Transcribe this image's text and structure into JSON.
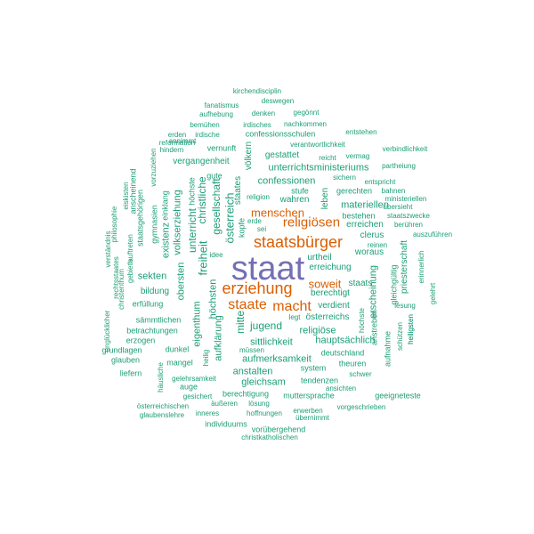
{
  "colors": {
    "frequent": "#7570b3",
    "common": "#d95f02",
    "rare": "#1b9e77"
  },
  "words": [
    {
      "text": "staat",
      "rank": 1
    },
    {
      "text": "staatsbürger",
      "rank": 2
    },
    {
      "text": "erziehung",
      "rank": 2
    },
    {
      "text": "religiösen",
      "rank": 2
    },
    {
      "text": "menschen",
      "rank": 2
    },
    {
      "text": "staate",
      "rank": 2
    },
    {
      "text": "macht",
      "rank": 2
    },
    {
      "text": "soweit",
      "rank": 2
    },
    {
      "text": "kirchendisciplin",
      "rank": 3
    },
    {
      "text": "deswegen",
      "rank": 3
    },
    {
      "text": "fanatismus",
      "rank": 3
    },
    {
      "text": "aufhebung",
      "rank": 3
    },
    {
      "text": "denken",
      "rank": 3
    },
    {
      "text": "gegönnt",
      "rank": 3
    },
    {
      "text": "bemühen",
      "rank": 3
    },
    {
      "text": "irdisches",
      "rank": 3
    },
    {
      "text": "nachkommen",
      "rank": 3
    },
    {
      "text": "erden",
      "rank": 3
    },
    {
      "text": "irdische",
      "rank": 3
    },
    {
      "text": "confessionsschulen",
      "rank": 3
    },
    {
      "text": "entstehen",
      "rank": 3
    },
    {
      "text": "reformation",
      "rank": 3
    },
    {
      "text": "annimmt",
      "rank": 3
    },
    {
      "text": "vernunft",
      "rank": 3
    },
    {
      "text": "verantwortlichkeit",
      "rank": 3
    },
    {
      "text": "verbindlichkeit",
      "rank": 3
    },
    {
      "text": "hindern",
      "rank": 3
    },
    {
      "text": "reicht",
      "rank": 3
    },
    {
      "text": "vermag",
      "rank": 3
    },
    {
      "text": "vergangenheit",
      "rank": 3
    },
    {
      "text": "gestattet",
      "rank": 3
    },
    {
      "text": "partheiung",
      "rank": 3
    },
    {
      "text": "unterrichtsministeriums",
      "rank": 3
    },
    {
      "text": "sichern",
      "rank": 3
    },
    {
      "text": "entspricht",
      "rank": 3
    },
    {
      "text": "gute",
      "rank": 3
    },
    {
      "text": "confessionen",
      "rank": 3
    },
    {
      "text": "stufe",
      "rank": 3
    },
    {
      "text": "gerechten",
      "rank": 3
    },
    {
      "text": "bahnen",
      "rank": 3
    },
    {
      "text": "religion",
      "rank": 3
    },
    {
      "text": "wahren",
      "rank": 3
    },
    {
      "text": "ministeriellen",
      "rank": 3
    },
    {
      "text": "übersieht",
      "rank": 3
    },
    {
      "text": "materiellen",
      "rank": 3
    },
    {
      "text": "bestehen",
      "rank": 3
    },
    {
      "text": "staatszwecke",
      "rank": 3
    },
    {
      "text": "erreichen",
      "rank": 3
    },
    {
      "text": "berühren",
      "rank": 3
    },
    {
      "text": "auszuführen",
      "rank": 3
    },
    {
      "text": "erde",
      "rank": 3
    },
    {
      "text": "sei",
      "rank": 3
    },
    {
      "text": "clerus",
      "rank": 3
    },
    {
      "text": "reinen",
      "rank": 3
    },
    {
      "text": "idee",
      "rank": 3
    },
    {
      "text": "woraus",
      "rank": 3
    },
    {
      "text": "urtheil",
      "rank": 3
    },
    {
      "text": "erreichung",
      "rank": 3
    },
    {
      "text": "sekten",
      "rank": 3
    },
    {
      "text": "bildung",
      "rank": 3
    },
    {
      "text": "staats",
      "rank": 3
    },
    {
      "text": "berechtigt",
      "rank": 3
    },
    {
      "text": "erfüllung",
      "rank": 3
    },
    {
      "text": "verdient",
      "rank": 3
    },
    {
      "text": "lesung",
      "rank": 3
    },
    {
      "text": "jugend",
      "rank": 3
    },
    {
      "text": "österreichs",
      "rank": 3
    },
    {
      "text": "legt",
      "rank": 3
    },
    {
      "text": "sämmtlichen",
      "rank": 3
    },
    {
      "text": "religiöse",
      "rank": 3
    },
    {
      "text": "betrachtungen",
      "rank": 3
    },
    {
      "text": "sittlichkeit",
      "rank": 3
    },
    {
      "text": "hauptsächlich",
      "rank": 3
    },
    {
      "text": "erzogen",
      "rank": 3
    },
    {
      "text": "dunkel",
      "rank": 3
    },
    {
      "text": "grundlagen",
      "rank": 3
    },
    {
      "text": "müssen",
      "rank": 3
    },
    {
      "text": "deutschland",
      "rank": 3
    },
    {
      "text": "glauben",
      "rank": 3
    },
    {
      "text": "mangel",
      "rank": 3
    },
    {
      "text": "aufmerksamkeit",
      "rank": 3
    },
    {
      "text": "theuren",
      "rank": 3
    },
    {
      "text": "liefern",
      "rank": 3
    },
    {
      "text": "anstalten",
      "rank": 3
    },
    {
      "text": "system",
      "rank": 3
    },
    {
      "text": "schwer",
      "rank": 3
    },
    {
      "text": "gelehrsamkeit",
      "rank": 3
    },
    {
      "text": "gleichsam",
      "rank": 3
    },
    {
      "text": "tendenzen",
      "rank": 3
    },
    {
      "text": "auge",
      "rank": 3
    },
    {
      "text": "ansichten",
      "rank": 3
    },
    {
      "text": "gesichert",
      "rank": 3
    },
    {
      "text": "berechtigung",
      "rank": 3
    },
    {
      "text": "muttersprache",
      "rank": 3
    },
    {
      "text": "geeigneteste",
      "rank": 3
    },
    {
      "text": "äußeren",
      "rank": 3
    },
    {
      "text": "lösung",
      "rank": 3
    },
    {
      "text": "österreichischen",
      "rank": 3
    },
    {
      "text": "vorgeschrieben",
      "rank": 3
    },
    {
      "text": "glaubenslehre",
      "rank": 3
    },
    {
      "text": "inneres",
      "rank": 3
    },
    {
      "text": "hoffnungen",
      "rank": 3
    },
    {
      "text": "erwerben",
      "rank": 3
    },
    {
      "text": "übernimmt",
      "rank": 3
    },
    {
      "text": "individuums",
      "rank": 3
    },
    {
      "text": "vorübergehend",
      "rank": 3
    },
    {
      "text": "christkatholischen",
      "rank": 3
    },
    {
      "text": "unglücklicher",
      "rank": 3
    },
    {
      "text": "verständnis",
      "rank": 3
    },
    {
      "text": "rechtsstaates",
      "rank": 3
    },
    {
      "text": "christenthum",
      "rank": 3
    },
    {
      "text": "gebieth",
      "rank": 3
    },
    {
      "text": "philosophie",
      "rank": 3
    },
    {
      "text": "eiskisten",
      "rank": 3
    },
    {
      "text": "staatsgehörigen",
      "rank": 3
    },
    {
      "text": "anscheinend",
      "rank": 3
    },
    {
      "text": "auftreten",
      "rank": 3
    },
    {
      "text": "gymnasien",
      "rank": 3
    },
    {
      "text": "vorzuziehen",
      "rank": 3
    },
    {
      "text": "einklang",
      "rank": 3
    },
    {
      "text": "existenz",
      "rank": 3
    },
    {
      "text": "volkserziehung",
      "rank": 3
    },
    {
      "text": "obersten",
      "rank": 3
    },
    {
      "text": "eigenthum",
      "rank": 3
    },
    {
      "text": "unterricht",
      "rank": 3
    },
    {
      "text": "freiheit",
      "rank": 3
    },
    {
      "text": "höchsten",
      "rank": 3
    },
    {
      "text": "aufklärung",
      "rank": 3
    },
    {
      "text": "heilig",
      "rank": 3
    },
    {
      "text": "häusliche",
      "rank": 3
    },
    {
      "text": "höchste",
      "rank": 3
    },
    {
      "text": "christliche",
      "rank": 3
    },
    {
      "text": "gesellschaft",
      "rank": 3
    },
    {
      "text": "staates",
      "rank": 3
    },
    {
      "text": "völkern",
      "rank": 3
    },
    {
      "text": "österreich",
      "rank": 3
    },
    {
      "text": "kopfe",
      "rank": 3
    },
    {
      "text": "mitte",
      "rank": 3
    },
    {
      "text": "leben",
      "rank": 3
    },
    {
      "text": "erscheinung",
      "rank": 3
    },
    {
      "text": "gleichgültig",
      "rank": 3
    },
    {
      "text": "priesterschaft",
      "rank": 3
    },
    {
      "text": "erinnerlich",
      "rank": 3
    },
    {
      "text": "gelehrt",
      "rank": 3
    },
    {
      "text": "heiligsten",
      "rank": 3
    },
    {
      "text": "schützen",
      "rank": 3
    },
    {
      "text": "aufnahme",
      "rank": 3
    },
    {
      "text": "anstreben",
      "rank": 3
    },
    {
      "text": "höchste",
      "rank": 3
    },
    {
      "text": "heiligsten",
      "rank": 3
    }
  ]
}
